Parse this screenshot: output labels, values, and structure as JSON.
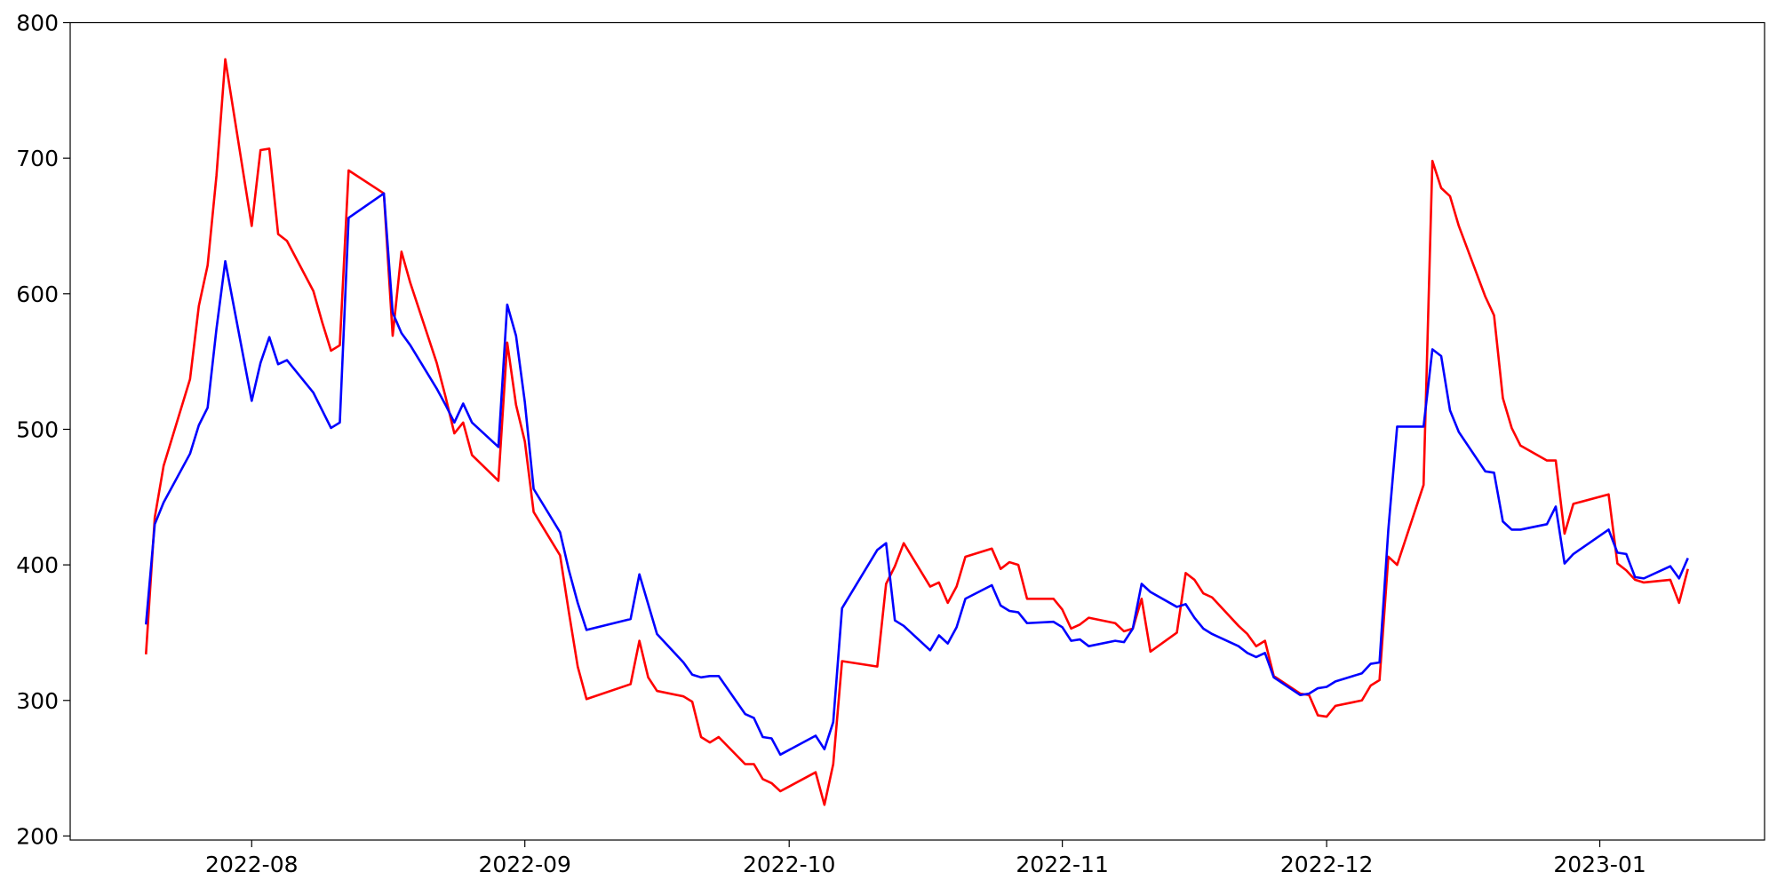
{
  "chart_data": {
    "type": "line",
    "x": [
      19193,
      19194,
      19195,
      19198,
      19199,
      19200,
      19201,
      19202,
      19205,
      19206,
      19207,
      19208,
      19209,
      19212,
      19213,
      19214,
      19215,
      19216,
      19220,
      19221,
      19222,
      19223,
      19226,
      19227,
      19228,
      19229,
      19230,
      19233,
      19234,
      19235,
      19236,
      19237,
      19240,
      19241,
      19242,
      19243,
      19248,
      19249,
      19250,
      19251,
      19254,
      19255,
      19256,
      19257,
      19258,
      19261,
      19262,
      19263,
      19264,
      19265,
      19269,
      19270,
      19271,
      19272,
      19276,
      19277,
      19278,
      19279,
      19282,
      19283,
      19284,
      19285,
      19286,
      19289,
      19290,
      19291,
      19292,
      19293,
      19296,
      19297,
      19298,
      19299,
      19300,
      19303,
      19304,
      19305,
      19306,
      19307,
      19310,
      19311,
      19312,
      19313,
      19314,
      19317,
      19318,
      19319,
      19320,
      19321,
      19324,
      19325,
      19326,
      19327,
      19328,
      19331,
      19332,
      19333,
      19334,
      19335,
      19338,
      19339,
      19340,
      19341,
      19342,
      19345,
      19346,
      19347,
      19348,
      19349,
      19352,
      19353,
      19354,
      19355,
      19359,
      19360,
      19361,
      19362,
      19363,
      19366,
      19367,
      19368
    ],
    "series": [
      {
        "color": "#ff0000",
        "values": [
          334,
          435,
          473,
          537,
          591,
          621,
          687,
          773,
          650,
          706,
          707,
          644,
          639,
          602,
          579,
          558,
          562,
          691,
          674,
          569,
          631,
          608,
          549,
          524,
          497,
          505,
          481,
          462,
          564,
          518,
          491,
          439,
          407,
          365,
          325,
          301,
          312,
          344,
          317,
          307,
          303,
          299,
          273,
          269,
          273,
          253,
          253,
          242,
          239,
          233,
          247,
          223,
          253,
          329,
          325,
          386,
          399,
          416,
          384,
          387,
          372,
          384,
          406,
          412,
          397,
          402,
          400,
          375,
          375,
          367,
          353,
          356,
          361,
          357,
          351,
          353,
          375,
          336,
          350,
          394,
          389,
          379,
          376,
          355,
          349,
          340,
          344,
          318,
          305,
          304,
          289,
          288,
          296,
          300,
          311,
          315,
          406,
          400,
          459,
          698,
          678,
          672,
          650,
          598,
          584,
          523,
          501,
          488,
          477,
          477,
          423,
          445,
          452,
          401,
          396,
          389,
          387,
          389,
          372,
          397
        ]
      },
      {
        "color": "#0000ff",
        "values": [
          356,
          430,
          446,
          482,
          503,
          516,
          574,
          624,
          521,
          549,
          568,
          548,
          551,
          527,
          514,
          501,
          505,
          656,
          674,
          586,
          571,
          562,
          530,
          518,
          505,
          519,
          505,
          487,
          592,
          569,
          520,
          456,
          424,
          396,
          372,
          352,
          360,
          393,
          371,
          349,
          328,
          319,
          317,
          318,
          318,
          290,
          287,
          273,
          272,
          260,
          274,
          264,
          284,
          368,
          411,
          416,
          359,
          355,
          337,
          348,
          342,
          354,
          375,
          385,
          370,
          366,
          365,
          357,
          358,
          354,
          344,
          345,
          340,
          344,
          343,
          353,
          386,
          380,
          369,
          371,
          361,
          353,
          349,
          340,
          335,
          332,
          335,
          317,
          304,
          305,
          309,
          310,
          314,
          320,
          327,
          328,
          426,
          502,
          502,
          559,
          554,
          514,
          498,
          469,
          468,
          432,
          426,
          426,
          430,
          443,
          401,
          408,
          426,
          409,
          408,
          391,
          390,
          399,
          390,
          405
        ]
      }
    ],
    "xlim": [
      19184.4,
      19376.7
    ],
    "xticks": [
      {
        "value": 19205,
        "label": "2022-08"
      },
      {
        "value": 19236,
        "label": "2022-09"
      },
      {
        "value": 19266,
        "label": "2022-10"
      },
      {
        "value": 19297,
        "label": "2022-11"
      },
      {
        "value": 19327,
        "label": "2022-12"
      },
      {
        "value": 19358,
        "label": "2023-01"
      }
    ],
    "ylim": [
      197,
      800
    ],
    "yticks": [
      200,
      300,
      400,
      500,
      600,
      700,
      800
    ],
    "grid": false
  }
}
